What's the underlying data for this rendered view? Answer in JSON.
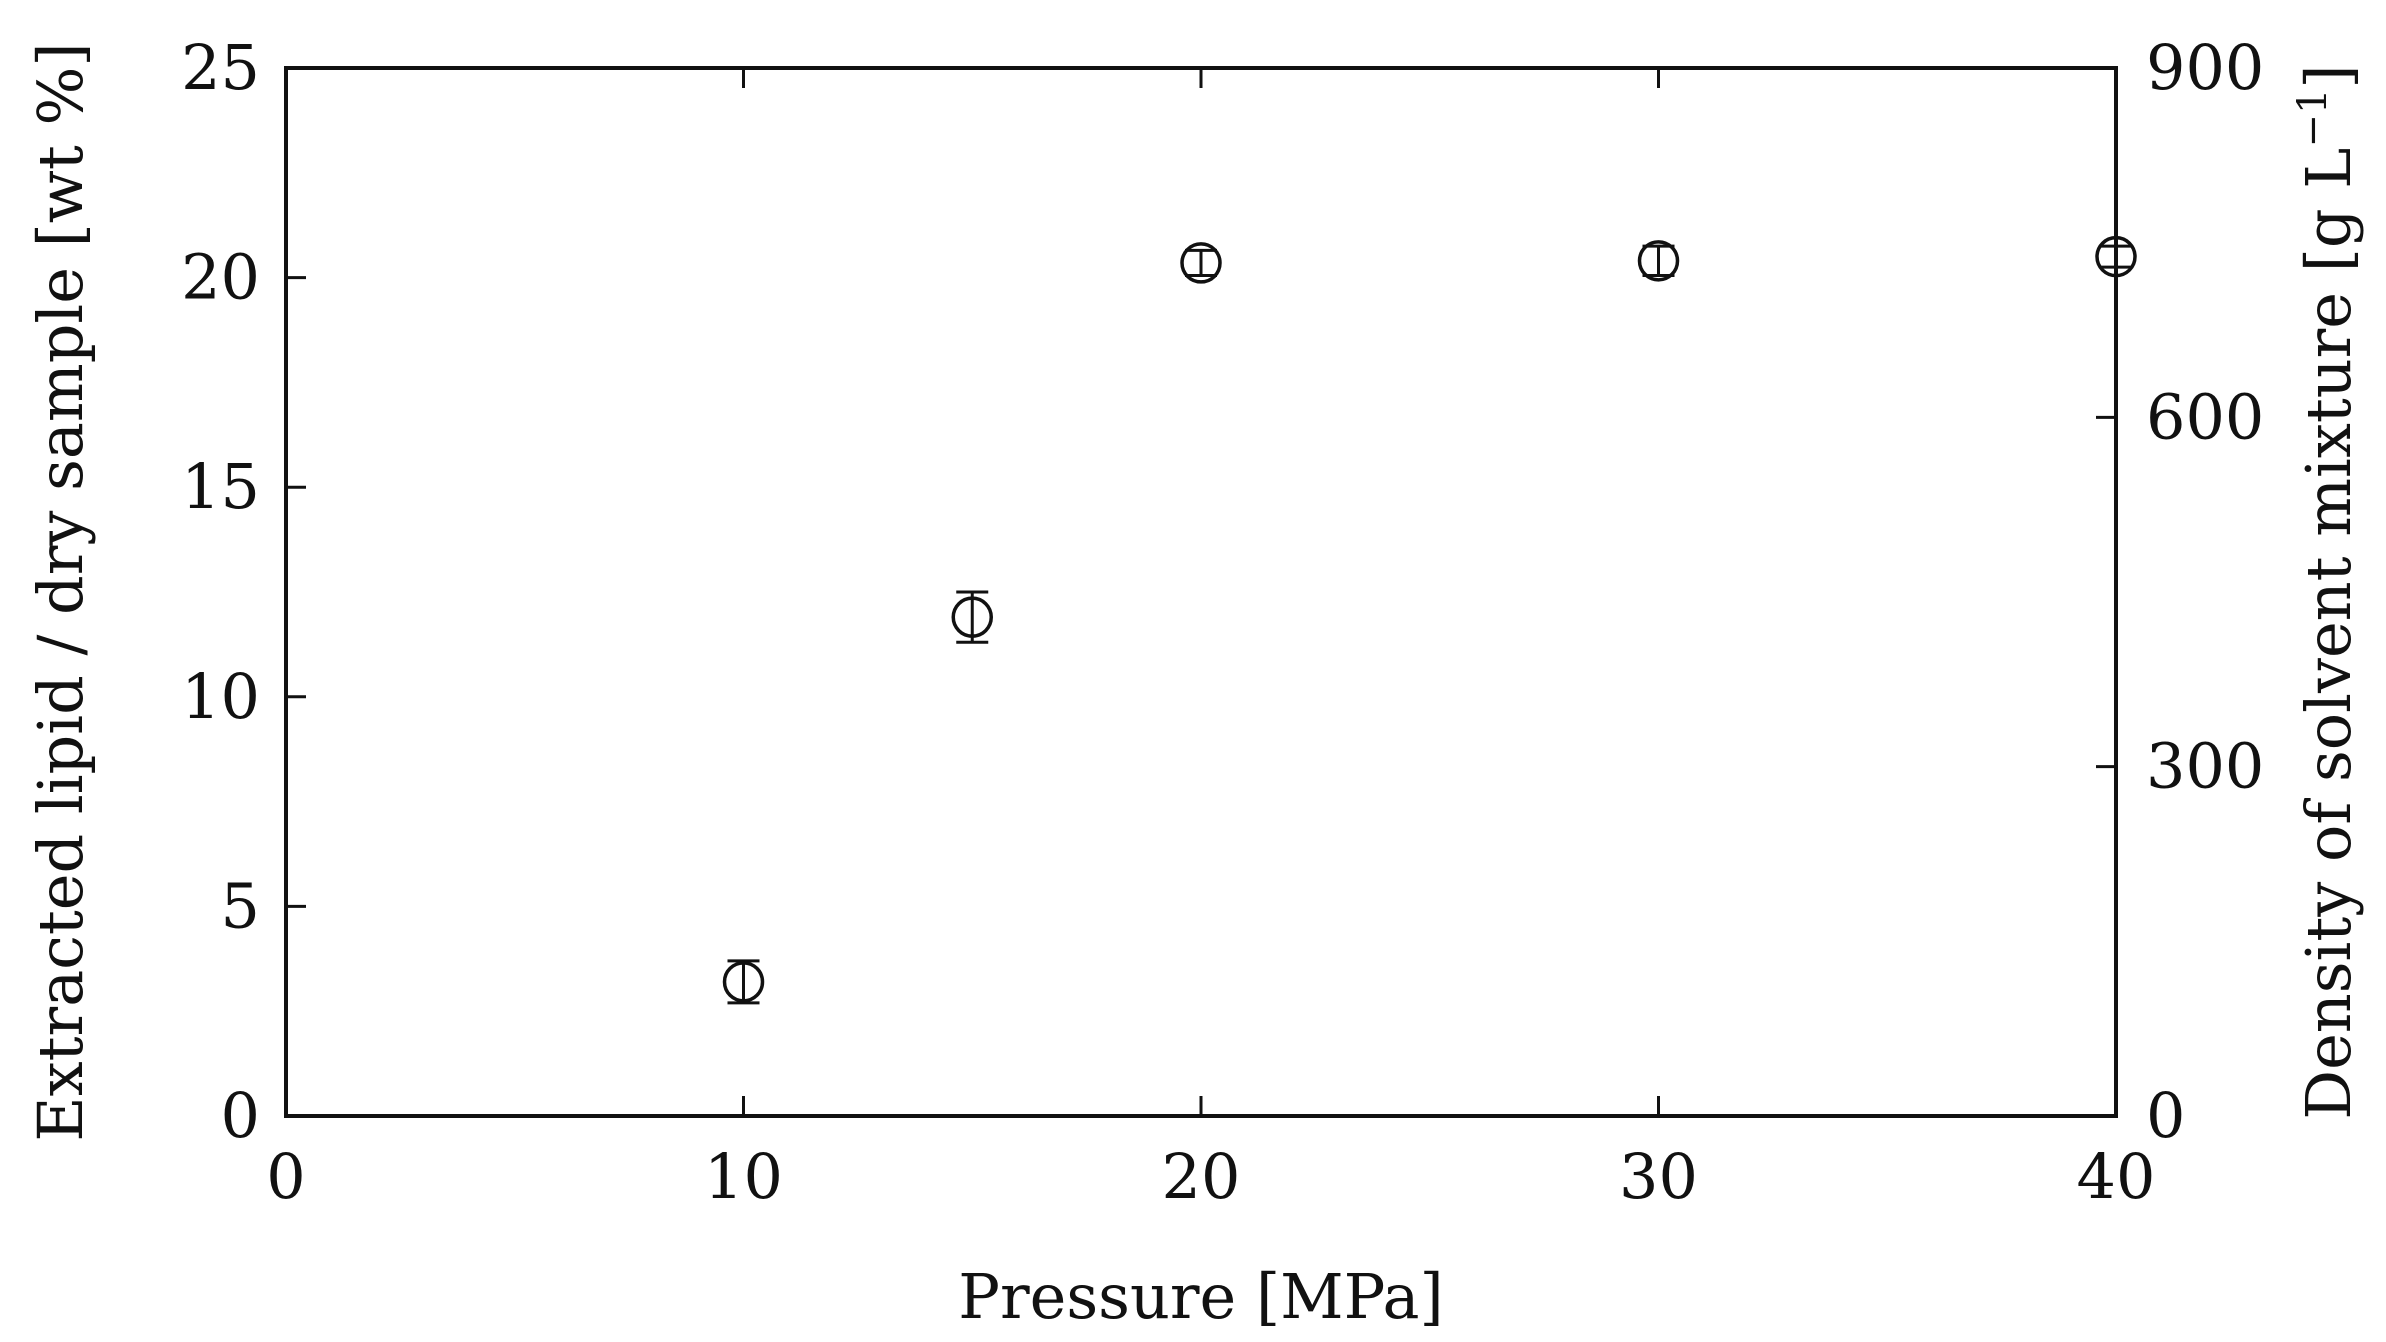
{
  "chart_data": {
    "type": "scatter",
    "xlabel": "Pressure [MPa]",
    "ylabel": "Extracted lipid / dry sample [wt %]",
    "y2label_main": "Density of solvent mixture [g L",
    "y2label_sup": "−1",
    "y2label_end": "]",
    "xlim": [
      0,
      40
    ],
    "ylim": [
      0,
      25
    ],
    "y2lim": [
      0,
      900
    ],
    "xticks": [
      0,
      10,
      20,
      30,
      40
    ],
    "yticks": [
      0,
      5,
      10,
      15,
      20,
      25
    ],
    "y2ticks": [
      0,
      300,
      600,
      900
    ],
    "grid": false,
    "series": [
      {
        "marker": "open-circle",
        "points": [
          {
            "x": 10,
            "y": 3.2,
            "err": 0.5
          },
          {
            "x": 15,
            "y": 11.9,
            "err": 0.6
          },
          {
            "x": 20,
            "y": 20.35,
            "err": 0.3
          },
          {
            "x": 30,
            "y": 20.4,
            "err": 0.35
          },
          {
            "x": 40,
            "y": 20.5,
            "err": 0.25
          }
        ]
      }
    ]
  }
}
